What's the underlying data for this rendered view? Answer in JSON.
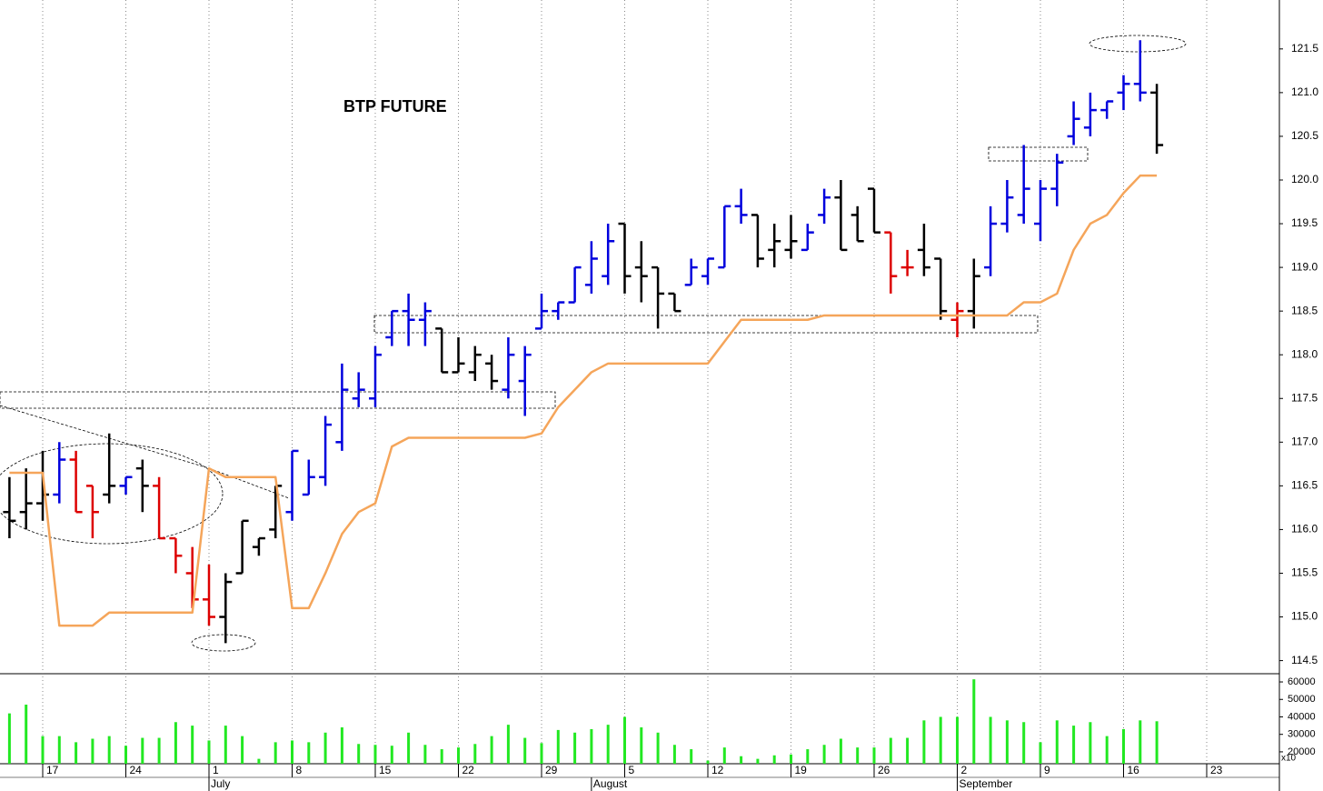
{
  "chart_data": [
    {
      "type": "ohlc",
      "title": "BTP FUTURE",
      "categories": [
        null,
        null,
        "17",
        null,
        null,
        null,
        null,
        "24",
        null,
        null,
        null,
        null,
        "1",
        null,
        null,
        null,
        null,
        "8",
        null,
        null,
        null,
        null,
        "15",
        null,
        null,
        null,
        null,
        "22",
        null,
        null,
        null,
        null,
        "29",
        null,
        null,
        null,
        null,
        "5",
        null,
        null,
        null,
        null,
        "12",
        null,
        null,
        null,
        null,
        "19",
        null,
        null,
        null,
        null,
        "26",
        null,
        null,
        null,
        null,
        "2",
        null,
        null,
        null,
        null,
        "9",
        null,
        null,
        null,
        null,
        "16",
        null,
        null,
        null,
        null,
        "23"
      ],
      "months": [
        null,
        null,
        null,
        null,
        null,
        null,
        null,
        null,
        null,
        null,
        null,
        null,
        "July",
        null,
        null,
        null,
        null,
        null,
        null,
        null,
        null,
        null,
        null,
        null,
        null,
        null,
        null,
        null,
        null,
        null,
        null,
        null,
        null,
        null,
        null,
        "August",
        null,
        null,
        null,
        null,
        null,
        null,
        null,
        null,
        null,
        null,
        null,
        null,
        null,
        null,
        null,
        null,
        null,
        null,
        null,
        null,
        null,
        "September",
        null,
        null,
        null,
        null,
        null,
        null,
        null,
        null,
        null,
        null,
        null,
        null,
        null,
        null,
        null
      ],
      "open": [
        116.2,
        116.2,
        116.3,
        116.4,
        116.8,
        116.5,
        116.4,
        116.5,
        116.7,
        116.5,
        115.9,
        115.5,
        115.2,
        115.0,
        115.5,
        115.8,
        116.0,
        116.2,
        116.4,
        116.6,
        117.0,
        117.5,
        117.5,
        118.2,
        118.5,
        118.4,
        118.3,
        117.8,
        117.8,
        117.9,
        117.6,
        117.7,
        118.3,
        118.5,
        118.6,
        118.8,
        118.9,
        119.5,
        119.0,
        119.0,
        118.7,
        118.8,
        118.9,
        119.0,
        119.7,
        119.6,
        119.2,
        119.2,
        119.2,
        119.6,
        119.8,
        119.6,
        119.9,
        119.4,
        119.0,
        119.2,
        119.1,
        118.4,
        118.5,
        119.0,
        119.5,
        119.6,
        119.5,
        119.9,
        120.5,
        120.6,
        120.8,
        121.0,
        121.1,
        121.0,
        null,
        null,
        null
      ],
      "high": [
        116.6,
        116.7,
        116.9,
        117.0,
        116.9,
        116.5,
        117.1,
        116.6,
        116.8,
        116.6,
        115.9,
        115.8,
        115.6,
        115.5,
        116.1,
        115.9,
        116.5,
        116.9,
        116.8,
        117.3,
        117.9,
        117.8,
        118.1,
        118.5,
        118.7,
        118.6,
        118.3,
        118.2,
        118.1,
        118.0,
        118.2,
        118.1,
        118.7,
        118.6,
        119.0,
        119.3,
        119.5,
        119.5,
        119.3,
        119.0,
        118.7,
        119.1,
        119.1,
        119.7,
        119.9,
        119.6,
        119.5,
        119.6,
        119.5,
        119.9,
        120.0,
        119.7,
        119.9,
        119.4,
        119.2,
        119.5,
        119.1,
        118.6,
        119.1,
        119.7,
        120.0,
        120.4,
        120.0,
        120.3,
        120.9,
        121.0,
        120.9,
        121.2,
        121.6,
        121.1,
        null,
        null,
        null
      ],
      "low": [
        115.9,
        116.0,
        116.1,
        116.3,
        116.2,
        115.9,
        116.3,
        116.4,
        116.2,
        115.9,
        115.5,
        115.1,
        114.9,
        114.7,
        115.5,
        115.7,
        115.9,
        116.1,
        116.4,
        116.5,
        116.9,
        117.4,
        117.4,
        118.1,
        118.1,
        118.1,
        117.8,
        117.8,
        117.7,
        117.6,
        117.5,
        117.3,
        118.3,
        118.4,
        118.6,
        118.7,
        118.8,
        118.7,
        118.6,
        118.3,
        118.5,
        118.8,
        118.8,
        119.0,
        119.5,
        119.0,
        119.0,
        119.1,
        119.2,
        119.5,
        119.2,
        119.3,
        119.4,
        118.7,
        118.9,
        118.9,
        118.4,
        118.2,
        118.3,
        118.9,
        119.4,
        119.5,
        119.3,
        119.7,
        120.4,
        120.5,
        120.7,
        120.8,
        120.9,
        120.3,
        null,
        null,
        null
      ],
      "close": [
        116.1,
        116.3,
        116.4,
        116.8,
        116.2,
        116.2,
        116.5,
        116.6,
        116.5,
        115.9,
        115.7,
        115.2,
        115.0,
        115.4,
        116.1,
        115.9,
        116.5,
        116.9,
        116.6,
        117.2,
        117.6,
        117.6,
        118.0,
        118.5,
        118.4,
        118.5,
        117.8,
        117.9,
        118.0,
        117.7,
        118.0,
        118.0,
        118.5,
        118.6,
        119.0,
        119.1,
        119.3,
        118.9,
        118.9,
        118.7,
        118.5,
        119.0,
        119.1,
        119.7,
        119.6,
        119.1,
        119.3,
        119.3,
        119.4,
        119.8,
        119.2,
        119.3,
        119.4,
        118.9,
        119.0,
        119.0,
        118.5,
        118.5,
        118.9,
        119.5,
        119.8,
        119.9,
        119.9,
        120.2,
        120.7,
        120.8,
        120.9,
        121.1,
        121.0,
        120.4,
        null,
        null,
        null
      ],
      "bar_colors": [
        "#000000",
        "#000000",
        "#000000",
        "#0000dd",
        "#dd0000",
        "#dd0000",
        "#000000",
        "#0000dd",
        "#000000",
        "#dd0000",
        "#dd0000",
        "#dd0000",
        "#dd0000",
        "#000000",
        "#000000",
        "#000000",
        "#000000",
        "#0000dd",
        "#0000dd",
        "#0000dd",
        "#0000dd",
        "#0000dd",
        "#0000dd",
        "#0000dd",
        "#0000dd",
        "#0000dd",
        "#000000",
        "#000000",
        "#000000",
        "#000000",
        "#0000dd",
        "#0000dd",
        "#0000dd",
        "#0000dd",
        "#0000dd",
        "#0000dd",
        "#0000dd",
        "#000000",
        "#000000",
        "#000000",
        "#000000",
        "#0000dd",
        "#0000dd",
        "#0000dd",
        "#0000dd",
        "#000000",
        "#000000",
        "#000000",
        "#0000dd",
        "#0000dd",
        "#000000",
        "#000000",
        "#000000",
        "#dd0000",
        "#dd0000",
        "#000000",
        "#000000",
        "#dd0000",
        "#000000",
        "#0000dd",
        "#0000dd",
        "#0000dd",
        "#0000dd",
        "#0000dd",
        "#0000dd",
        "#0000dd",
        "#0000dd",
        "#0000dd",
        "#0000dd",
        "#000000",
        null,
        null,
        null
      ],
      "stop_line": {
        "color": "#f5a55a",
        "values": [
          116.65,
          116.65,
          116.65,
          114.9,
          114.9,
          114.9,
          115.05,
          115.05,
          115.05,
          115.05,
          115.05,
          115.05,
          116.7,
          116.6,
          116.6,
          116.6,
          116.6,
          115.1,
          115.1,
          115.5,
          115.95,
          116.2,
          116.3,
          116.95,
          117.05,
          117.05,
          117.05,
          117.05,
          117.05,
          117.05,
          117.05,
          117.05,
          117.1,
          117.4,
          117.6,
          117.8,
          117.9,
          117.9,
          117.9,
          117.9,
          117.9,
          117.9,
          117.9,
          118.15,
          118.4,
          118.4,
          118.4,
          118.4,
          118.4,
          118.45,
          118.45,
          118.45,
          118.45,
          118.45,
          118.45,
          118.45,
          118.45,
          118.45,
          118.45,
          118.45,
          118.45,
          118.6,
          118.6,
          118.7,
          119.2,
          119.5,
          119.6,
          119.85,
          120.05,
          120.05,
          null,
          null,
          null
        ]
      },
      "ylim": [
        114.35,
        122.06
      ],
      "yticks": [
        114.5,
        {
          "value": 115,
          "label": "115.0"
        },
        115.5,
        {
          "value": 116,
          "label": "116.0"
        },
        116.5,
        {
          "value": 117,
          "label": "117.0"
        },
        117.5,
        {
          "value": 118,
          "label": "118.0"
        },
        118.5,
        {
          "value": 119,
          "label": "119.0"
        },
        119.5,
        {
          "value": 120,
          "label": "120.0"
        },
        120.5,
        {
          "value": 121,
          "label": "121.0"
        },
        121.5
      ]
    },
    {
      "type": "bar",
      "color": "#22e822",
      "unit_label": "x10",
      "values": [
        42000,
        47000,
        29000,
        29000,
        25500,
        27500,
        29000,
        23500,
        28000,
        28000,
        37000,
        35000,
        26500,
        35000,
        29000,
        16000,
        25500,
        26500,
        25500,
        31000,
        34000,
        24500,
        24000,
        23500,
        31000,
        24000,
        21500,
        22500,
        24500,
        29000,
        35500,
        28000,
        25000,
        32500,
        31000,
        33000,
        35500,
        40000,
        34000,
        31000,
        24000,
        21500,
        15000,
        22500,
        17500,
        16000,
        18000,
        18500,
        21500,
        24000,
        27500,
        22500,
        22500,
        28000,
        28000,
        38000,
        40000,
        40000,
        61500,
        40000,
        38000,
        37000,
        25500,
        38000,
        35000,
        37000,
        29000,
        33000,
        38000,
        37500,
        null,
        null,
        null
      ],
      "ylim": [
        13200,
        64700
      ],
      "yticks": [
        20000,
        30000,
        40000,
        50000,
        60000
      ]
    }
  ]
}
